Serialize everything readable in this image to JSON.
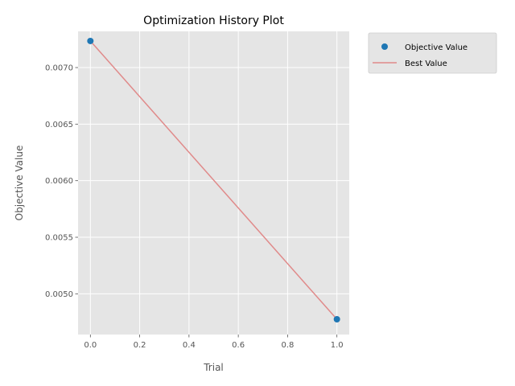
{
  "chart_data": {
    "type": "scatter",
    "title": "Optimization History Plot",
    "xlabel": "Trial",
    "ylabel": "Objective Value",
    "xlim": [
      -0.05,
      1.05
    ],
    "ylim": [
      0.00464,
      0.00732
    ],
    "xticks": [
      0.0,
      0.2,
      0.4,
      0.6,
      0.8,
      1.0
    ],
    "xtick_labels": [
      "0.0",
      "0.2",
      "0.4",
      "0.6",
      "0.8",
      "1.0"
    ],
    "yticks": [
      0.005,
      0.0055,
      0.006,
      0.0065,
      0.007
    ],
    "ytick_labels": [
      "0.0050",
      "0.0055",
      "0.0060",
      "0.0065",
      "0.0070"
    ],
    "grid": true,
    "legend_position": "outside-top-right",
    "series": [
      {
        "name": "Objective Value",
        "kind": "scatter",
        "color": "#1f77b4",
        "x": [
          0,
          1
        ],
        "y": [
          0.007235,
          0.004775
        ]
      },
      {
        "name": "Best Value",
        "kind": "line",
        "color": "#e08a8a",
        "x": [
          0,
          1
        ],
        "y": [
          0.007235,
          0.004775
        ]
      }
    ]
  }
}
